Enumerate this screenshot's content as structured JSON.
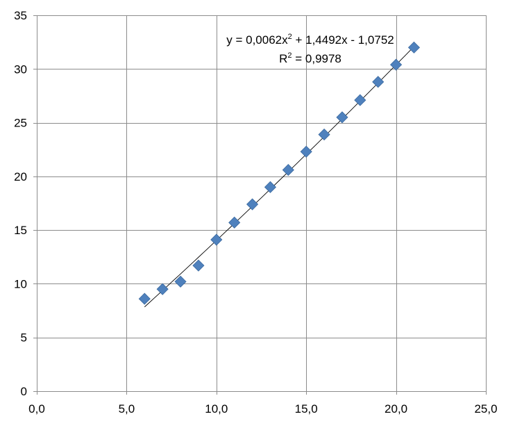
{
  "chart_data": {
    "type": "scatter",
    "title": "",
    "xlabel": "",
    "ylabel": "",
    "xlim": [
      0,
      25
    ],
    "ylim": [
      0,
      35
    ],
    "x_ticks": [
      0,
      5,
      10,
      15,
      20,
      25
    ],
    "x_tick_labels": [
      "0,0",
      "5,0",
      "10,0",
      "15,0",
      "20,0",
      "25,0"
    ],
    "y_ticks": [
      0,
      5,
      10,
      15,
      20,
      25,
      30,
      35
    ],
    "y_tick_labels": [
      "0",
      "5",
      "10",
      "15",
      "20",
      "25",
      "30",
      "35"
    ],
    "grid": true,
    "legend": "none",
    "marker": "diamond",
    "series": [
      {
        "color": "#4f81bd",
        "x": [
          6,
          7,
          8,
          9,
          10,
          11,
          12,
          13,
          14,
          15,
          16,
          17,
          18,
          19,
          20,
          21
        ],
        "y": [
          8.6,
          9.5,
          10.2,
          11.7,
          14.1,
          15.7,
          17.4,
          19.0,
          20.6,
          22.3,
          23.9,
          25.5,
          27.1,
          28.8,
          30.4,
          32.0
        ]
      }
    ],
    "trendline": {
      "type": "polynomial",
      "order": 2,
      "coefficients": [
        0.0062,
        1.4492,
        -1.0752
      ],
      "x_range": [
        6,
        21
      ],
      "color": "#000000"
    },
    "annotation": {
      "equation_prefix": "y = 0,0062x",
      "equation_sup": "2",
      "equation_suffix": " + 1,4492x - 1,0752",
      "r2_prefix": "R",
      "r2_sup": "2",
      "r2_suffix": " = 0,9978"
    }
  }
}
